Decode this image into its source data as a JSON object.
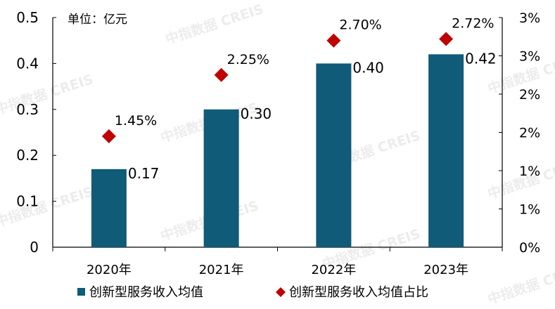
{
  "chart_data": {
    "type": "bar",
    "unit_note": "单位：亿元",
    "categories": [
      "2020年",
      "2021年",
      "2022年",
      "2023年"
    ],
    "series": [
      {
        "name": "创新型服务收入均值",
        "kind": "bar",
        "axis": "left",
        "color": "#0f5b78",
        "values": [
          0.17,
          0.3,
          0.4,
          0.42
        ],
        "labels": [
          "0.17",
          "0.30",
          "0.40",
          "0.42"
        ]
      },
      {
        "name": "创新型服务收入均值占比",
        "kind": "marker",
        "marker": "diamond",
        "axis": "right",
        "color": "#c00000",
        "values": [
          1.45,
          2.25,
          2.7,
          2.72
        ],
        "labels": [
          "1.45%",
          "2.25%",
          "2.70%",
          "2.72%"
        ]
      }
    ],
    "y_left": {
      "ylim": [
        0,
        0.5
      ],
      "ticks": [
        "0",
        "0.1",
        "0.2",
        "0.3",
        "0.4",
        "0.5"
      ]
    },
    "y_right": {
      "ylim": [
        0,
        3
      ],
      "ticks": [
        "0%",
        "1%",
        "1%",
        "2%",
        "2%",
        "3%",
        "3%"
      ]
    },
    "grid": false,
    "legend_position": "bottom"
  },
  "watermark": {
    "text": "中指数据 CREIS"
  }
}
